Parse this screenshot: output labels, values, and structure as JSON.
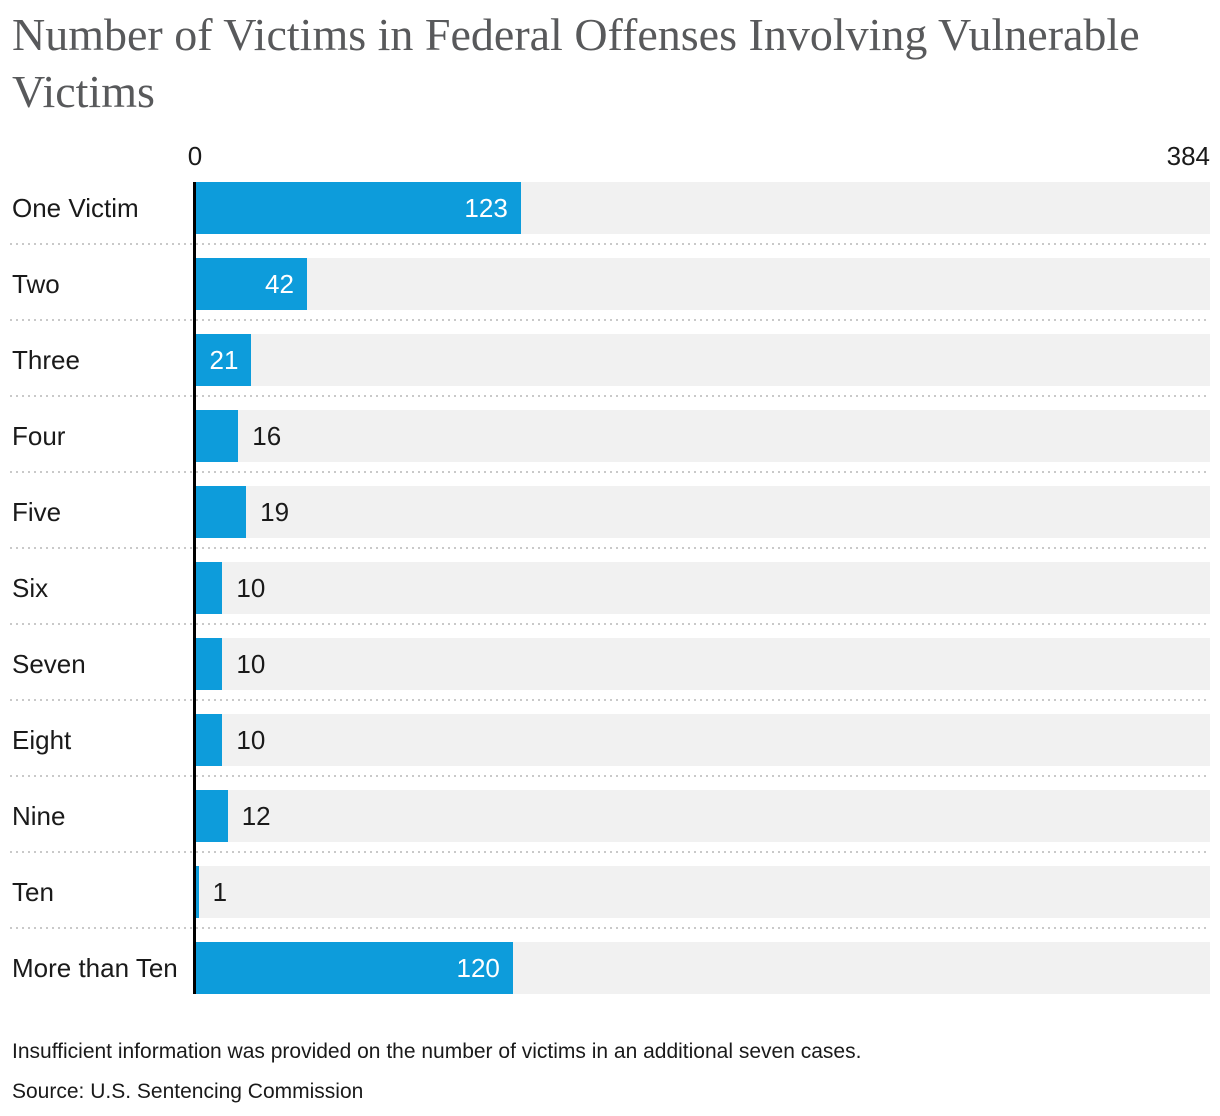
{
  "title": "Number of Victims in Federal Offenses Involving Vulnerable Victims",
  "note": "Insufficient information was provided on the number of victims in an additional seven cases.",
  "source": "Source: U.S. Sentencing Commission",
  "chart_data": {
    "type": "bar",
    "orientation": "horizontal",
    "title": "Number of Victims in Federal Offenses Involving Vulnerable Victims",
    "categories": [
      "One Victim",
      "Two",
      "Three",
      "Four",
      "Five",
      "Six",
      "Seven",
      "Eight",
      "Nine",
      "Ten",
      "More than Ten"
    ],
    "values": [
      123,
      42,
      21,
      16,
      19,
      10,
      10,
      10,
      12,
      1,
      120
    ],
    "axis": {
      "min": 0,
      "max": 384,
      "min_label": "0",
      "max_label": "384"
    },
    "legend": "none",
    "grid": "dotted row separators",
    "value_labels": "white inside bar when bar is wide, dark outside bar when narrow",
    "colors": {
      "bar": "#0d9cdb",
      "track": "#f1f1f1",
      "axis_line": "#000000",
      "separator": "#c9c9c9",
      "title_text": "#58595b",
      "body_text": "#1a1a1a",
      "value_inside_text": "#ffffff"
    }
  }
}
